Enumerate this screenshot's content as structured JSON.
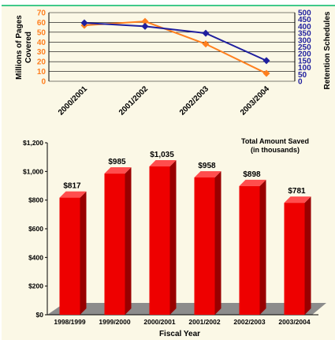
{
  "chart_data": [
    {
      "type": "line",
      "categories": [
        "2000/2001",
        "2001/2002",
        "2002/2003",
        "2003/2004"
      ],
      "series": [
        {
          "name": "Millions of Pages Covered",
          "axis": "left",
          "color": "#ff7f1e",
          "values": [
            57,
            61,
            38,
            8
          ]
        },
        {
          "name": "Retention Schedules",
          "axis": "right",
          "color": "#1f1f9e",
          "values": [
            425,
            400,
            350,
            150
          ]
        }
      ],
      "ylabel": "Millions of Pages Covered",
      "ylabel2": "Retention Schedules",
      "ylim": [
        0,
        70
      ],
      "ylim2": [
        0,
        500
      ],
      "yticks": [
        "0",
        "10",
        "20",
        "30",
        "40",
        "50",
        "60",
        "70"
      ],
      "yticks2": [
        "0",
        "50",
        "100",
        "150",
        "200",
        "250",
        "300",
        "350",
        "400",
        "450",
        "500"
      ],
      "colors": {
        "left_axis": "#ff7f1e",
        "right_axis": "#1f1f9e"
      },
      "grid": true
    },
    {
      "type": "bar",
      "categories": [
        "1998/1999",
        "1999/2000",
        "2000/2001",
        "2001/2002",
        "2002/2003",
        "2003/2004"
      ],
      "values": [
        817,
        985,
        1035,
        958,
        898,
        781
      ],
      "data_labels": [
        "$817",
        "$985",
        "$1,035",
        "$958",
        "$898",
        "$781"
      ],
      "title_lines": [
        "Total Amount Saved",
        "(in thousands)"
      ],
      "xlabel": "Fiscal Year",
      "ylim": [
        0,
        1200
      ],
      "yticks": [
        "$0",
        "$200",
        "$400",
        "$600",
        "$800",
        "$1,000",
        "$1,200"
      ],
      "colors": {
        "bar_front": "#ee0000",
        "bar_side": "#990000",
        "bar_top": "#ff4d4d",
        "floor": "#8c8c8c"
      }
    }
  ]
}
